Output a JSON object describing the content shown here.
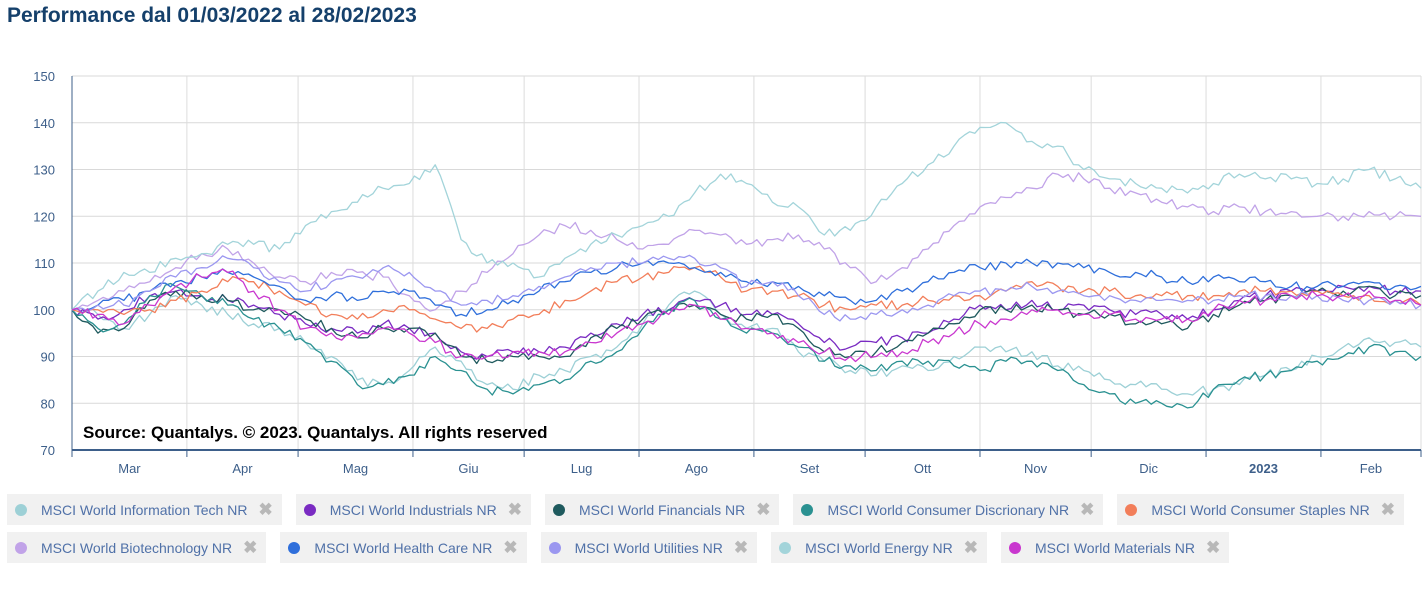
{
  "title": "Performance dal 01/03/2022 al 28/02/2023",
  "source_note": "Source: Quantalys. © 2023. Quantalys. All rights reserved",
  "legend_close_glyph": "✖",
  "chart_data": {
    "type": "line",
    "x_tick_labels": [
      "Mar",
      "Apr",
      "Mag",
      "Giu",
      "Lug",
      "Ago",
      "Set",
      "Ott",
      "Nov",
      "Dic",
      "2023",
      "Feb"
    ],
    "x_tick_bold": [
      "2023"
    ],
    "x_range": [
      "2022-03-01",
      "2023-02-28"
    ],
    "ylim": [
      70,
      150
    ],
    "y_ticks": [
      70,
      80,
      90,
      100,
      110,
      120,
      130,
      140,
      150
    ],
    "grid": true,
    "legend_position": "bottom",
    "x": [
      "2022-03-01",
      "2022-03-08",
      "2022-03-15",
      "2022-03-22",
      "2022-03-29",
      "2022-04-05",
      "2022-04-12",
      "2022-04-19",
      "2022-04-26",
      "2022-05-03",
      "2022-05-10",
      "2022-05-17",
      "2022-05-24",
      "2022-05-31",
      "2022-06-07",
      "2022-06-14",
      "2022-06-21",
      "2022-06-28",
      "2022-07-05",
      "2022-07-12",
      "2022-07-19",
      "2022-07-26",
      "2022-08-02",
      "2022-08-09",
      "2022-08-16",
      "2022-08-23",
      "2022-08-30",
      "2022-09-06",
      "2022-09-13",
      "2022-09-20",
      "2022-09-27",
      "2022-10-04",
      "2022-10-11",
      "2022-10-18",
      "2022-10-25",
      "2022-11-01",
      "2022-11-08",
      "2022-11-15",
      "2022-11-22",
      "2022-11-29",
      "2022-12-06",
      "2022-12-13",
      "2022-12-20",
      "2022-12-27",
      "2023-01-03",
      "2023-01-10",
      "2023-01-17",
      "2023-01-24",
      "2023-01-31",
      "2023-02-07",
      "2023-02-14",
      "2023-02-21",
      "2023-02-28"
    ],
    "series": [
      {
        "name": "MSCI World Information Tech NR",
        "color": "#9dd0d6",
        "values": [
          100,
          99,
          96,
          99,
          103,
          101,
          99,
          97,
          96,
          93,
          90,
          85,
          84,
          87,
          92,
          89,
          84,
          83,
          86,
          87,
          90,
          92,
          97,
          101,
          104,
          99,
          96,
          96,
          91,
          89,
          87,
          86,
          88,
          87,
          90,
          92,
          91,
          91,
          88,
          87,
          85,
          84,
          83,
          82,
          83,
          84,
          86,
          87,
          90,
          92,
          94,
          93,
          92
        ]
      },
      {
        "name": "MSCI World Industrials NR",
        "color": "#7a2bc2",
        "values": [
          100,
          98,
          100,
          103,
          104,
          103,
          102,
          101,
          99,
          97,
          96,
          95,
          97,
          96,
          95,
          91,
          90,
          91,
          91,
          92,
          95,
          97,
          99,
          100,
          102,
          101,
          99,
          99,
          97,
          93,
          92,
          93,
          94,
          95,
          98,
          101,
          100,
          102,
          100,
          101,
          100,
          99,
          99,
          98,
          100,
          102,
          103,
          104,
          104,
          105,
          105,
          104,
          104
        ]
      },
      {
        "name": "MSCI World Financials NR",
        "color": "#1f5a5e",
        "values": [
          100,
          95,
          96,
          102,
          104,
          103,
          102,
          100,
          100,
          98,
          96,
          94,
          96,
          96,
          95,
          90,
          89,
          90,
          90,
          90,
          94,
          96,
          98,
          100,
          101,
          99,
          98,
          99,
          96,
          91,
          90,
          91,
          93,
          95,
          97,
          100,
          100,
          101,
          100,
          99,
          99,
          97,
          97,
          96,
          99,
          101,
          102,
          103,
          104,
          104,
          105,
          103,
          103
        ]
      },
      {
        "name": "MSCI World Consumer Discrionary NR",
        "color": "#2a9191",
        "values": [
          100,
          96,
          97,
          103,
          105,
          103,
          101,
          98,
          96,
          93,
          89,
          84,
          84,
          86,
          90,
          87,
          83,
          82,
          84,
          85,
          89,
          91,
          96,
          100,
          102,
          98,
          95,
          95,
          92,
          89,
          88,
          87,
          89,
          89,
          88,
          87,
          89,
          89,
          87,
          84,
          82,
          80,
          80,
          79,
          83,
          85,
          86,
          87,
          89,
          90,
          92,
          91,
          90
        ]
      },
      {
        "name": "MSCI World Consumer Staples NR",
        "color": "#f27e5a",
        "values": [
          100,
          100,
          99,
          100,
          102,
          104,
          106,
          106,
          104,
          101,
          99,
          98,
          100,
          100,
          98,
          96,
          96,
          98,
          99,
          102,
          104,
          106,
          107,
          108,
          109,
          107,
          104,
          104,
          103,
          101,
          100,
          101,
          101,
          102,
          103,
          103,
          104,
          106,
          105,
          104,
          104,
          103,
          103,
          103,
          103,
          104,
          104,
          104,
          104,
          103,
          103,
          102,
          101
        ]
      },
      {
        "name": "MSCI World Biotechnology NR",
        "color": "#c1a3e8",
        "values": [
          100,
          102,
          104,
          106,
          109,
          112,
          113,
          110,
          107,
          106,
          108,
          108,
          107,
          103,
          100,
          104,
          108,
          112,
          116,
          118,
          117,
          115,
          113,
          114,
          117,
          116,
          114,
          115,
          116,
          113,
          109,
          106,
          109,
          113,
          118,
          122,
          124,
          126,
          129,
          128,
          126,
          125,
          123,
          122,
          121,
          122,
          121,
          121,
          120,
          120,
          121,
          120,
          120
        ]
      },
      {
        "name": "MSCI World Health Care NR",
        "color": "#2f6fdb",
        "values": [
          100,
          101,
          102,
          104,
          106,
          107,
          108,
          107,
          105,
          102,
          103,
          102,
          104,
          104,
          101,
          99,
          100,
          102,
          104,
          106,
          108,
          109,
          110,
          110,
          109,
          108,
          106,
          106,
          105,
          103,
          102,
          102,
          104,
          106,
          108,
          109,
          110,
          110,
          110,
          109,
          108,
          108,
          107,
          106,
          107,
          106,
          106,
          105,
          105,
          105,
          106,
          105,
          105
        ]
      },
      {
        "name": "MSCI World Utilities NR",
        "color": "#9b97f0",
        "values": [
          100,
          101,
          101,
          104,
          107,
          109,
          111,
          109,
          106,
          104,
          106,
          107,
          109,
          108,
          104,
          101,
          102,
          103,
          105,
          107,
          109,
          110,
          110,
          111,
          111,
          109,
          105,
          106,
          103,
          99,
          98,
          99,
          100,
          101,
          103,
          104,
          104,
          105,
          104,
          103,
          103,
          102,
          102,
          102,
          102,
          103,
          103,
          103,
          103,
          102,
          102,
          102,
          101
        ]
      },
      {
        "name": "MSCI World Energy NR",
        "color": "#a3d4da",
        "values": [
          100,
          104,
          108,
          108,
          111,
          112,
          114,
          114,
          113,
          118,
          121,
          123,
          126,
          127,
          131,
          115,
          110,
          110,
          107,
          111,
          114,
          116,
          118,
          120,
          125,
          129,
          127,
          123,
          122,
          116,
          117,
          122,
          127,
          131,
          135,
          139,
          140,
          136,
          135,
          130,
          128,
          127,
          126,
          125,
          127,
          129,
          128,
          128,
          127,
          128,
          130,
          128,
          126
        ]
      },
      {
        "name": "MSCI World Materials NR",
        "color": "#c937cf",
        "values": [
          100,
          99,
          97,
          101,
          105,
          107,
          108,
          104,
          100,
          96,
          95,
          94,
          96,
          95,
          93,
          90,
          90,
          91,
          91,
          91,
          93,
          95,
          97,
          99,
          101,
          98,
          96,
          95,
          93,
          91,
          90,
          90,
          91,
          93,
          95,
          97,
          98,
          100,
          100,
          99,
          99,
          98,
          98,
          98,
          100,
          102,
          102,
          103,
          103,
          103,
          104,
          102,
          101
        ]
      }
    ]
  }
}
